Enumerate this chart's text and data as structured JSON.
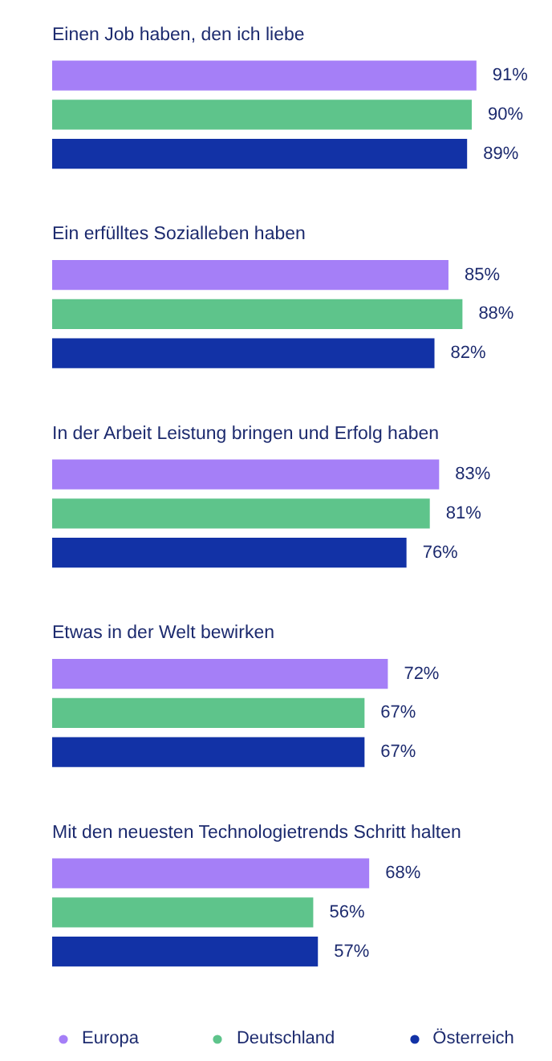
{
  "chart_data": {
    "type": "bar",
    "orientation": "horizontal",
    "legend": "bottom",
    "categories": [
      "Einen Job haben, den ich liebe",
      "Ein erfülltes Sozialleben haben",
      "In der Arbeit Leistung bringen und Erfolg haben",
      "Etwas in der Welt bewirken",
      "Mit den neuesten Technologietrends Schritt halten"
    ],
    "series": [
      {
        "name": "Europa",
        "color": "#a57ff7",
        "values": [
          91,
          85,
          83,
          72,
          68
        ],
        "value_labels": [
          "91%",
          "85%",
          "83%",
          "72%",
          "68%"
        ]
      },
      {
        "name": "Deutschland",
        "color": "#5ec48b",
        "values": [
          90,
          88,
          81,
          67,
          56
        ],
        "value_labels": [
          "90%",
          "88%",
          "81%",
          "67%",
          "56%"
        ]
      },
      {
        "name": "Österreich",
        "color": "#1232a6",
        "values": [
          89,
          82,
          76,
          67,
          57
        ],
        "value_labels": [
          "89%",
          "82%",
          "76%",
          "67%",
          "57%"
        ]
      }
    ]
  }
}
